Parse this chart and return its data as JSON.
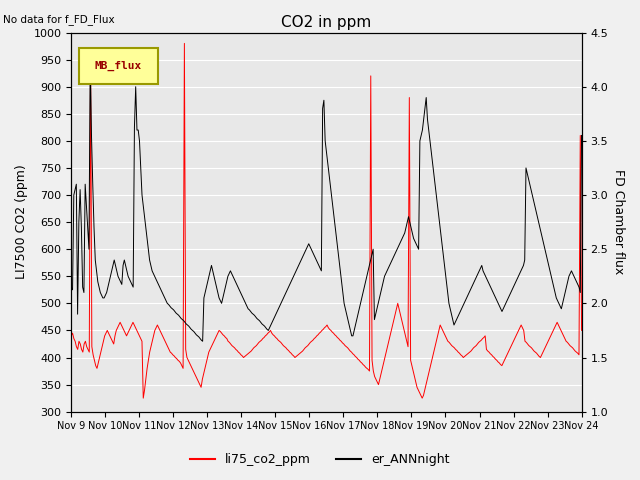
{
  "title": "CO2 in ppm",
  "ylabel_left": "LI7500 CO2 (ppm)",
  "ylabel_right": "FD Chamber flux",
  "ylim_left": [
    300,
    1000
  ],
  "ylim_right": [
    1.0,
    4.5
  ],
  "annotation_text": "No data for f_FD_Flux",
  "legend_box_label": "MB_flux",
  "xtick_labels": [
    "Nov 9",
    "Nov 10",
    "Nov 11",
    "Nov 12",
    "Nov 13",
    "Nov 14",
    "Nov 15",
    "Nov 16",
    "Nov 17",
    "Nov 18",
    "Nov 19",
    "Nov 20",
    "Nov 21",
    "Nov 22",
    "Nov 23",
    "Nov 24"
  ],
  "background_color": "#e8e8e8",
  "fig_background": "#f0f0f0",
  "line_red_color": "#ff0000",
  "line_black_color": "#000000",
  "legend_red_label": "li75_co2_ppm",
  "legend_black_label": "er_ANNnight",
  "red_data": [
    440,
    445,
    435,
    430,
    420,
    415,
    430,
    425,
    415,
    410,
    425,
    430,
    420,
    415,
    410,
    960,
    420,
    405,
    395,
    385,
    380,
    390,
    400,
    410,
    420,
    430,
    440,
    445,
    450,
    445,
    440,
    435,
    430,
    425,
    440,
    450,
    455,
    460,
    465,
    460,
    455,
    450,
    445,
    440,
    445,
    450,
    455,
    460,
    465,
    460,
    455,
    450,
    445,
    440,
    435,
    430,
    325,
    340,
    360,
    380,
    395,
    410,
    420,
    430,
    440,
    450,
    455,
    460,
    455,
    450,
    445,
    440,
    435,
    430,
    425,
    420,
    415,
    410,
    408,
    405,
    403,
    400,
    398,
    395,
    393,
    390,
    385,
    380,
    980,
    415,
    400,
    395,
    390,
    385,
    380,
    375,
    370,
    365,
    360,
    355,
    350,
    345,
    360,
    370,
    380,
    390,
    400,
    410,
    415,
    420,
    425,
    430,
    435,
    440,
    445,
    450,
    448,
    445,
    442,
    440,
    437,
    435,
    430,
    428,
    425,
    422,
    420,
    418,
    415,
    413,
    410,
    408,
    405,
    403,
    400,
    402,
    404,
    406,
    408,
    410,
    412,
    415,
    418,
    420,
    422,
    425,
    428,
    430,
    432,
    435,
    437,
    440,
    442,
    445,
    447,
    450,
    445,
    442,
    440,
    437,
    435,
    432,
    430,
    428,
    425,
    422,
    420,
    418,
    415,
    413,
    410,
    408,
    405,
    403,
    400,
    402,
    404,
    406,
    408,
    410,
    412,
    415,
    418,
    420,
    422,
    425,
    428,
    430,
    432,
    435,
    437,
    440,
    442,
    445,
    447,
    450,
    452,
    455,
    457,
    460,
    455,
    452,
    450,
    447,
    445,
    442,
    440,
    437,
    435,
    432,
    430,
    427,
    425,
    422,
    420,
    418,
    415,
    412,
    410,
    407,
    405,
    402,
    400,
    397,
    395,
    392,
    390,
    387,
    385,
    382,
    380,
    378,
    375,
    920,
    395,
    375,
    365,
    360,
    355,
    350,
    360,
    370,
    380,
    390,
    400,
    410,
    420,
    430,
    440,
    450,
    460,
    470,
    480,
    490,
    500,
    490,
    480,
    470,
    460,
    450,
    440,
    430,
    420,
    880,
    395,
    385,
    375,
    365,
    355,
    345,
    340,
    335,
    330,
    325,
    330,
    340,
    350,
    360,
    370,
    380,
    390,
    400,
    410,
    420,
    430,
    440,
    450,
    460,
    455,
    450,
    445,
    440,
    435,
    430,
    428,
    425,
    422,
    420,
    418,
    415,
    413,
    410,
    408,
    405,
    403,
    400,
    402,
    404,
    406,
    408,
    410,
    412,
    415,
    418,
    420,
    422,
    425,
    428,
    430,
    432,
    435,
    437,
    440,
    415,
    412,
    410,
    407,
    405,
    402,
    400,
    397,
    395,
    392,
    390,
    387,
    385,
    390,
    395,
    400,
    405,
    410,
    415,
    420,
    425,
    430,
    435,
    440,
    445,
    450,
    455,
    460,
    455,
    450,
    430,
    428,
    425,
    422,
    420,
    418,
    415,
    412,
    410,
    408,
    405,
    402,
    400,
    405,
    410,
    415,
    420,
    425,
    430,
    435,
    440,
    445,
    450,
    455,
    460,
    465,
    460,
    455,
    450,
    445,
    440,
    435,
    430,
    428,
    425,
    422,
    420,
    418,
    415,
    412,
    410,
    408,
    405,
    810,
    450
  ],
  "black_data": [
    530,
    525,
    700,
    710,
    720,
    480,
    650,
    710,
    640,
    530,
    520,
    720,
    680,
    640,
    600,
    950,
    810,
    720,
    640,
    580,
    560,
    540,
    530,
    520,
    515,
    510,
    510,
    515,
    520,
    530,
    540,
    550,
    560,
    570,
    580,
    570,
    560,
    550,
    545,
    540,
    535,
    570,
    580,
    570,
    560,
    550,
    545,
    540,
    535,
    530,
    825,
    900,
    820,
    820,
    800,
    750,
    700,
    680,
    660,
    640,
    620,
    600,
    580,
    570,
    560,
    555,
    550,
    545,
    540,
    535,
    530,
    525,
    520,
    515,
    510,
    505,
    500,
    498,
    495,
    492,
    490,
    488,
    485,
    482,
    480,
    478,
    475,
    472,
    470,
    468,
    465,
    462,
    460,
    458,
    455,
    452,
    450,
    448,
    445,
    442,
    440,
    438,
    435,
    432,
    430,
    510,
    520,
    530,
    540,
    550,
    560,
    570,
    560,
    550,
    540,
    530,
    520,
    510,
    505,
    500,
    510,
    520,
    530,
    540,
    550,
    555,
    560,
    555,
    550,
    545,
    540,
    535,
    530,
    525,
    520,
    515,
    510,
    505,
    500,
    495,
    490,
    488,
    485,
    482,
    480,
    478,
    475,
    472,
    470,
    468,
    465,
    462,
    460,
    458,
    455,
    452,
    450,
    455,
    460,
    465,
    470,
    475,
    480,
    485,
    490,
    495,
    500,
    505,
    510,
    515,
    520,
    525,
    530,
    535,
    540,
    545,
    550,
    555,
    560,
    565,
    570,
    575,
    580,
    585,
    590,
    595,
    600,
    605,
    610,
    605,
    600,
    595,
    590,
    585,
    580,
    575,
    570,
    565,
    560,
    860,
    875,
    800,
    780,
    760,
    740,
    720,
    700,
    680,
    660,
    640,
    620,
    600,
    580,
    560,
    540,
    520,
    500,
    490,
    480,
    470,
    460,
    450,
    440,
    440,
    450,
    460,
    470,
    480,
    490,
    500,
    510,
    520,
    530,
    540,
    550,
    560,
    570,
    580,
    590,
    600,
    470,
    480,
    490,
    500,
    510,
    520,
    530,
    540,
    550,
    555,
    560,
    565,
    570,
    575,
    580,
    585,
    590,
    595,
    600,
    605,
    610,
    615,
    620,
    625,
    630,
    640,
    650,
    660,
    650,
    640,
    630,
    620,
    615,
    610,
    605,
    600,
    800,
    810,
    820,
    840,
    860,
    880,
    840,
    820,
    800,
    780,
    760,
    740,
    720,
    700,
    680,
    660,
    640,
    620,
    600,
    580,
    560,
    540,
    520,
    500,
    490,
    480,
    470,
    460,
    465,
    470,
    475,
    480,
    485,
    490,
    495,
    500,
    505,
    510,
    515,
    520,
    525,
    530,
    535,
    540,
    545,
    550,
    555,
    560,
    565,
    570,
    560,
    555,
    550,
    545,
    540,
    535,
    530,
    525,
    520,
    515,
    510,
    505,
    500,
    495,
    490,
    485,
    490,
    495,
    500,
    505,
    510,
    515,
    520,
    525,
    530,
    535,
    540,
    545,
    550,
    555,
    560,
    565,
    570,
    580,
    750,
    740,
    730,
    720,
    710,
    700,
    690,
    680,
    670,
    660,
    650,
    640,
    630,
    620,
    610,
    600,
    590,
    580,
    570,
    560,
    550,
    540,
    530,
    520,
    510,
    505,
    500,
    495,
    490,
    500,
    510,
    520,
    530,
    540,
    550,
    555,
    560,
    555,
    550,
    545,
    540,
    535,
    530,
    520,
    810
  ]
}
